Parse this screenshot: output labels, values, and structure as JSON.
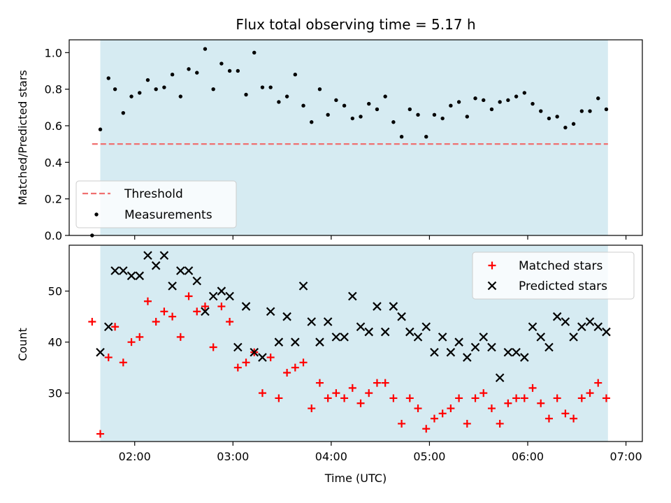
{
  "chart_data": [
    {
      "type": "scatter",
      "title": "Flux total observing time = 5.17 h",
      "xlabel": "",
      "ylabel": "Matched/Predicted stars",
      "ylim": [
        0,
        1.07
      ],
      "yticks": [
        "0.0",
        "0.2",
        "0.4",
        "0.6",
        "0.8",
        "1.0"
      ],
      "shaded_span": [
        "01:39",
        "06:49"
      ],
      "shade_color": "#add8e6",
      "threshold": {
        "label": "Threshold",
        "value": 0.5,
        "x_start": "01:34",
        "x_end": "06:49",
        "color": "#f07070"
      },
      "legend": {
        "position": "lower-left",
        "entries": [
          "Threshold",
          "Measurements"
        ]
      },
      "series": [
        {
          "name": "Measurements",
          "marker": "dot",
          "color": "#000000",
          "points": [
            [
              "01:34",
              0.0
            ],
            [
              "01:39",
              0.58
            ],
            [
              "01:44",
              0.86
            ],
            [
              "01:48",
              0.8
            ],
            [
              "01:53",
              0.67
            ],
            [
              "01:58",
              0.76
            ],
            [
              "02:03",
              0.78
            ],
            [
              "02:08",
              0.85
            ],
            [
              "02:13",
              0.8
            ],
            [
              "02:18",
              0.81
            ],
            [
              "02:23",
              0.88
            ],
            [
              "02:28",
              0.76
            ],
            [
              "02:33",
              0.91
            ],
            [
              "02:38",
              0.89
            ],
            [
              "02:43",
              1.02
            ],
            [
              "02:48",
              0.8
            ],
            [
              "02:53",
              0.94
            ],
            [
              "02:58",
              0.9
            ],
            [
              "03:03",
              0.9
            ],
            [
              "03:08",
              0.77
            ],
            [
              "03:13",
              1.0
            ],
            [
              "03:18",
              0.81
            ],
            [
              "03:23",
              0.81
            ],
            [
              "03:28",
              0.73
            ],
            [
              "03:33",
              0.76
            ],
            [
              "03:38",
              0.88
            ],
            [
              "03:43",
              0.71
            ],
            [
              "03:48",
              0.62
            ],
            [
              "03:53",
              0.8
            ],
            [
              "03:58",
              0.66
            ],
            [
              "04:03",
              0.74
            ],
            [
              "04:08",
              0.71
            ],
            [
              "04:13",
              0.64
            ],
            [
              "04:18",
              0.65
            ],
            [
              "04:23",
              0.72
            ],
            [
              "04:28",
              0.69
            ],
            [
              "04:33",
              0.76
            ],
            [
              "04:38",
              0.62
            ],
            [
              "04:43",
              0.54
            ],
            [
              "04:48",
              0.69
            ],
            [
              "04:53",
              0.66
            ],
            [
              "04:58",
              0.54
            ],
            [
              "05:03",
              0.66
            ],
            [
              "05:08",
              0.64
            ],
            [
              "05:13",
              0.71
            ],
            [
              "05:18",
              0.73
            ],
            [
              "05:23",
              0.65
            ],
            [
              "05:28",
              0.75
            ],
            [
              "05:33",
              0.74
            ],
            [
              "05:38",
              0.69
            ],
            [
              "05:43",
              0.73
            ],
            [
              "05:48",
              0.74
            ],
            [
              "05:53",
              0.76
            ],
            [
              "05:58",
              0.78
            ],
            [
              "06:03",
              0.72
            ],
            [
              "06:08",
              0.68
            ],
            [
              "06:13",
              0.64
            ],
            [
              "06:18",
              0.65
            ],
            [
              "06:23",
              0.59
            ],
            [
              "06:28",
              0.61
            ],
            [
              "06:33",
              0.68
            ],
            [
              "06:38",
              0.68
            ],
            [
              "06:43",
              0.75
            ],
            [
              "06:48",
              0.69
            ]
          ]
        }
      ]
    },
    {
      "type": "scatter",
      "title": "",
      "xlabel": "Time (UTC)",
      "ylabel": "Count",
      "ylim": [
        20.5,
        59
      ],
      "yticks": [
        "30",
        "40",
        "50"
      ],
      "xlim": [
        "01:20",
        "07:10"
      ],
      "xticks": [
        "02:00",
        "03:00",
        "04:00",
        "05:00",
        "06:00",
        "07:00"
      ],
      "shaded_span": [
        "01:39",
        "06:49"
      ],
      "shade_color": "#add8e6",
      "legend": {
        "position": "top-right",
        "entries": [
          "Matched stars",
          "Predicted stars"
        ]
      },
      "series": [
        {
          "name": "Matched stars",
          "marker": "plus",
          "color": "#ff0000",
          "points": [
            [
              "01:34",
              44
            ],
            [
              "01:39",
              22
            ],
            [
              "01:44",
              37
            ],
            [
              "01:48",
              43
            ],
            [
              "01:53",
              36
            ],
            [
              "01:58",
              40
            ],
            [
              "02:03",
              41
            ],
            [
              "02:08",
              48
            ],
            [
              "02:13",
              44
            ],
            [
              "02:18",
              46
            ],
            [
              "02:23",
              45
            ],
            [
              "02:28",
              41
            ],
            [
              "02:33",
              49
            ],
            [
              "02:38",
              46
            ],
            [
              "02:43",
              47
            ],
            [
              "02:48",
              39
            ],
            [
              "02:53",
              47
            ],
            [
              "02:58",
              44
            ],
            [
              "03:03",
              35
            ],
            [
              "03:08",
              36
            ],
            [
              "03:13",
              38
            ],
            [
              "03:18",
              30
            ],
            [
              "03:23",
              37
            ],
            [
              "03:28",
              29
            ],
            [
              "03:33",
              34
            ],
            [
              "03:38",
              35
            ],
            [
              "03:43",
              36
            ],
            [
              "03:48",
              27
            ],
            [
              "03:53",
              32
            ],
            [
              "03:58",
              29
            ],
            [
              "04:03",
              30
            ],
            [
              "04:08",
              29
            ],
            [
              "04:13",
              31
            ],
            [
              "04:18",
              28
            ],
            [
              "04:23",
              30
            ],
            [
              "04:28",
              32
            ],
            [
              "04:33",
              32
            ],
            [
              "04:38",
              29
            ],
            [
              "04:43",
              24
            ],
            [
              "04:48",
              29
            ],
            [
              "04:53",
              27
            ],
            [
              "04:58",
              23
            ],
            [
              "05:03",
              25
            ],
            [
              "05:08",
              26
            ],
            [
              "05:13",
              27
            ],
            [
              "05:18",
              29
            ],
            [
              "05:23",
              24
            ],
            [
              "05:28",
              29
            ],
            [
              "05:33",
              30
            ],
            [
              "05:38",
              27
            ],
            [
              "05:43",
              24
            ],
            [
              "05:48",
              28
            ],
            [
              "05:53",
              29
            ],
            [
              "05:58",
              29
            ],
            [
              "06:03",
              31
            ],
            [
              "06:08",
              28
            ],
            [
              "06:13",
              25
            ],
            [
              "06:18",
              29
            ],
            [
              "06:23",
              26
            ],
            [
              "06:28",
              25
            ],
            [
              "06:33",
              29
            ],
            [
              "06:38",
              30
            ],
            [
              "06:43",
              32
            ],
            [
              "06:48",
              29
            ]
          ]
        },
        {
          "name": "Predicted stars",
          "marker": "x",
          "color": "#000000",
          "points": [
            [
              "01:39",
              38
            ],
            [
              "01:44",
              43
            ],
            [
              "01:48",
              54
            ],
            [
              "01:53",
              54
            ],
            [
              "01:58",
              53
            ],
            [
              "02:03",
              53
            ],
            [
              "02:08",
              57
            ],
            [
              "02:13",
              55
            ],
            [
              "02:18",
              57
            ],
            [
              "02:23",
              51
            ],
            [
              "02:28",
              54
            ],
            [
              "02:33",
              54
            ],
            [
              "02:38",
              52
            ],
            [
              "02:43",
              46
            ],
            [
              "02:48",
              49
            ],
            [
              "02:53",
              50
            ],
            [
              "02:58",
              49
            ],
            [
              "03:03",
              39
            ],
            [
              "03:08",
              47
            ],
            [
              "03:13",
              38
            ],
            [
              "03:18",
              37
            ],
            [
              "03:23",
              46
            ],
            [
              "03:28",
              40
            ],
            [
              "03:33",
              45
            ],
            [
              "03:38",
              40
            ],
            [
              "03:43",
              51
            ],
            [
              "03:48",
              44
            ],
            [
              "03:53",
              40
            ],
            [
              "03:58",
              44
            ],
            [
              "04:03",
              41
            ],
            [
              "04:08",
              41
            ],
            [
              "04:13",
              49
            ],
            [
              "04:18",
              43
            ],
            [
              "04:23",
              42
            ],
            [
              "04:28",
              47
            ],
            [
              "04:33",
              42
            ],
            [
              "04:38",
              47
            ],
            [
              "04:43",
              45
            ],
            [
              "04:48",
              42
            ],
            [
              "04:53",
              41
            ],
            [
              "04:58",
              43
            ],
            [
              "05:03",
              38
            ],
            [
              "05:08",
              41
            ],
            [
              "05:13",
              38
            ],
            [
              "05:18",
              40
            ],
            [
              "05:23",
              37
            ],
            [
              "05:28",
              39
            ],
            [
              "05:33",
              41
            ],
            [
              "05:38",
              39
            ],
            [
              "05:43",
              33
            ],
            [
              "05:48",
              38
            ],
            [
              "05:53",
              38
            ],
            [
              "05:58",
              37
            ],
            [
              "06:03",
              43
            ],
            [
              "06:08",
              41
            ],
            [
              "06:13",
              39
            ],
            [
              "06:18",
              45
            ],
            [
              "06:23",
              44
            ],
            [
              "06:28",
              41
            ],
            [
              "06:33",
              43
            ],
            [
              "06:38",
              44
            ],
            [
              "06:43",
              43
            ],
            [
              "06:48",
              42
            ]
          ]
        }
      ]
    }
  ]
}
